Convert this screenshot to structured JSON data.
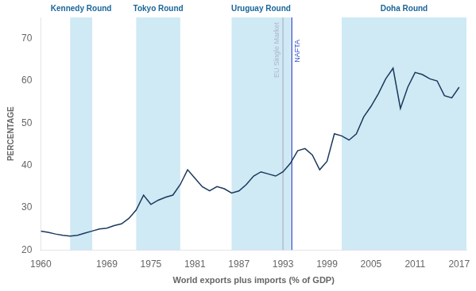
{
  "chart_data": {
    "type": "line",
    "xlabel": "World exports plus imports (% of GDP)",
    "ylabel": "PERCENTAGE",
    "x": [
      1960,
      1961,
      1962,
      1963,
      1964,
      1965,
      1966,
      1967,
      1968,
      1969,
      1970,
      1971,
      1972,
      1973,
      1974,
      1975,
      1976,
      1977,
      1978,
      1979,
      1980,
      1981,
      1982,
      1983,
      1984,
      1985,
      1986,
      1987,
      1988,
      1989,
      1990,
      1991,
      1992,
      1993,
      1994,
      1995,
      1996,
      1997,
      1998,
      1999,
      2000,
      2001,
      2002,
      2003,
      2004,
      2005,
      2006,
      2007,
      2008,
      2009,
      2010,
      2011,
      2012,
      2013,
      2014,
      2015,
      2016,
      2017
    ],
    "values": [
      24.5,
      24.2,
      23.8,
      23.5,
      23.3,
      23.5,
      24.0,
      24.5,
      25.0,
      25.2,
      25.8,
      26.2,
      27.5,
      29.5,
      33.0,
      30.8,
      31.8,
      32.5,
      33.0,
      35.5,
      39.0,
      37.0,
      35.0,
      34.0,
      35.0,
      34.5,
      33.5,
      34.0,
      35.5,
      37.5,
      38.5,
      38.0,
      37.5,
      38.5,
      40.5,
      43.5,
      44.0,
      42.5,
      39.0,
      41.0,
      47.5,
      47.0,
      46.0,
      47.5,
      51.5,
      54.0,
      57.0,
      60.5,
      63.0,
      53.5,
      58.5,
      62.0,
      61.5,
      60.5,
      60.0,
      56.5,
      56.0,
      58.5
    ],
    "color": "#1a3a5c",
    "xlim": [
      1960,
      2018
    ],
    "ylim": [
      20,
      75
    ],
    "xticks": [
      1960,
      1969,
      1975,
      1981,
      1987,
      1993,
      1999,
      2005,
      2011,
      2017
    ],
    "yticks": [
      20,
      30,
      40,
      50,
      60,
      70
    ],
    "grid": false,
    "bands": [
      {
        "label": "Kennedy Round",
        "x0": 1964,
        "x1": 1967,
        "color": "#41a8d8"
      },
      {
        "label": "Tokyo Round",
        "x0": 1973,
        "x1": 1979,
        "color": "#41a8d8"
      },
      {
        "label": "Uruguay Round",
        "x0": 1986,
        "x1": 1994,
        "color": "#41a8d8"
      },
      {
        "label": "Doha Round",
        "x0": 2001,
        "x1": 2018,
        "color": "#41a8d8"
      }
    ],
    "annotations": [
      {
        "text": "EU Single Market",
        "x": 1993.0,
        "color": "#b0b8cc"
      },
      {
        "text": "NAFTA",
        "x": 1994.2,
        "color": "#3355cc"
      }
    ]
  }
}
